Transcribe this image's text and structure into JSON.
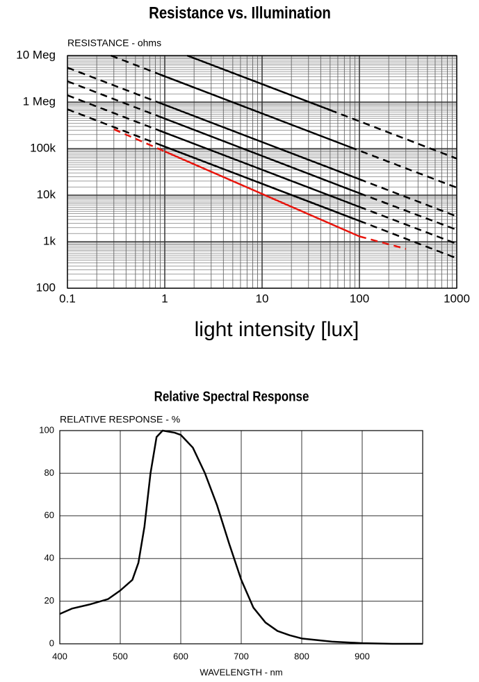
{
  "chart_data": [
    {
      "type": "line",
      "title": "Resistance vs. Illumination",
      "y_label": "RESISTANCE - ohms",
      "x_label": "light intensity [lux]",
      "xscale": "log",
      "yscale": "log",
      "xlim": [
        0.1,
        1000
      ],
      "ylim": [
        100,
        10000000
      ],
      "xticks": [
        0.1,
        1,
        10,
        100,
        1000
      ],
      "yticks": [
        {
          "value": 100,
          "label": "100"
        },
        {
          "value": 1000,
          "label": "1k"
        },
        {
          "value": 10000,
          "label": "10k"
        },
        {
          "value": 100000,
          "label": "100k"
        },
        {
          "value": 1000000,
          "label": "1 Meg"
        },
        {
          "value": 10000000,
          "label": "10 Meg"
        }
      ],
      "grid": true,
      "minor_grid": true,
      "series": [
        {
          "color": "#000000",
          "x": [
            1.7,
            50,
            1000
          ],
          "values": [
            10000000,
            675000,
            61000
          ],
          "dash": [
            "solid",
            "dashed"
          ]
        },
        {
          "color": "#000000",
          "x": [
            0.28,
            0.9,
            80,
            1000
          ],
          "values": [
            10000000,
            3900000,
            108000,
            14500
          ],
          "dash": [
            "dashed",
            "solid",
            "dashed"
          ]
        },
        {
          "color": "#000000",
          "x": [
            0.1,
            0.9,
            100,
            1000
          ],
          "values": [
            5500000,
            950000,
            22000,
            3500
          ],
          "dash": [
            "dashed",
            "solid",
            "dashed"
          ]
        },
        {
          "color": "#000000",
          "x": [
            0.1,
            0.9,
            100,
            1000
          ],
          "values": [
            2800000,
            480000,
            11000,
            1800
          ],
          "dash": [
            "dashed",
            "solid",
            "dashed"
          ]
        },
        {
          "color": "#000000",
          "x": [
            0.1,
            0.9,
            100,
            1000
          ],
          "values": [
            1400000,
            240000,
            5600,
            900
          ],
          "dash": [
            "dashed",
            "solid",
            "dashed"
          ]
        },
        {
          "color": "#000000",
          "x": [
            0.1,
            0.9,
            100,
            1000
          ],
          "values": [
            700000,
            120000,
            2800,
            440
          ],
          "dash": [
            "dashed",
            "solid",
            "dashed"
          ]
        },
        {
          "color": "#e8140c",
          "x": [
            0.3,
            1,
            100,
            300
          ],
          "values": [
            260000,
            87000,
            1300,
            700
          ],
          "dash": [
            "dashed",
            "solid",
            "dashed"
          ]
        }
      ]
    },
    {
      "type": "line",
      "title": "Relative Spectral Response",
      "y_label": "RELATIVE RESPONSE - %",
      "x_label": "WAVELENGTH - nm",
      "xlim": [
        400,
        1000
      ],
      "ylim": [
        0,
        100
      ],
      "xticks": [
        400,
        500,
        600,
        700,
        800,
        900
      ],
      "yticks": [
        0,
        20,
        40,
        60,
        80,
        100
      ],
      "grid": true,
      "color": "#000000",
      "x": [
        400,
        420,
        450,
        480,
        500,
        520,
        530,
        540,
        550,
        560,
        570,
        590,
        600,
        620,
        640,
        660,
        680,
        700,
        720,
        740,
        760,
        780,
        800,
        850,
        900,
        950,
        1000
      ],
      "values": [
        14,
        16.5,
        18.5,
        21,
        25,
        30,
        38,
        55,
        80,
        97,
        100,
        99,
        98,
        92,
        80,
        65,
        47,
        30,
        17,
        10,
        6,
        4,
        2.5,
        1,
        0.3,
        0,
        0
      ]
    }
  ]
}
